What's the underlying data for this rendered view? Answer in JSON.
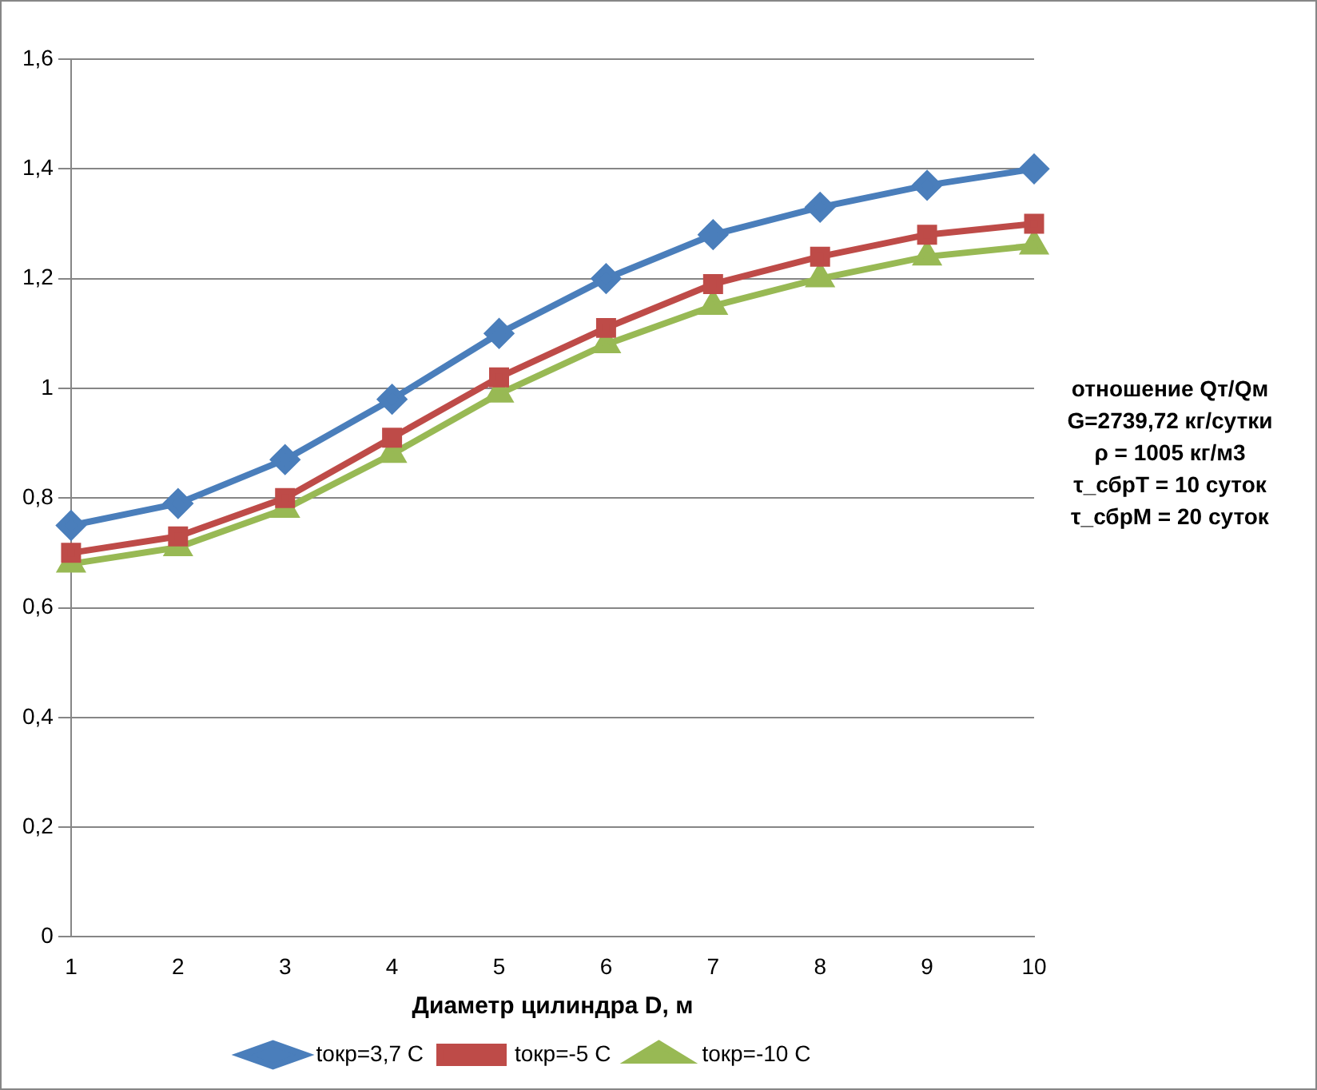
{
  "chart_data": {
    "type": "line",
    "xlabel": "Диаметр цилиндра D, м",
    "categories": [
      "1",
      "2",
      "3",
      "4",
      "5",
      "6",
      "7",
      "8",
      "9",
      "10"
    ],
    "series": [
      {
        "name": "tокр=3,7 С",
        "color": "#4a7ebb",
        "marker": "diamond",
        "values": [
          0.75,
          0.79,
          0.87,
          0.98,
          1.1,
          1.2,
          1.28,
          1.33,
          1.37,
          1.4
        ]
      },
      {
        "name": "tокр=-5 С",
        "color": "#be4b48",
        "marker": "square",
        "values": [
          0.7,
          0.73,
          0.8,
          0.91,
          1.02,
          1.11,
          1.19,
          1.24,
          1.28,
          1.3
        ]
      },
      {
        "name": "tокр=-10 С",
        "color": "#98b954",
        "marker": "triangle",
        "values": [
          0.68,
          0.71,
          0.78,
          0.88,
          0.99,
          1.08,
          1.15,
          1.2,
          1.24,
          1.26
        ]
      }
    ],
    "ylim": [
      0,
      1.6
    ],
    "yticks": [
      0,
      {
        "value": 0.2,
        "label": "0,2"
      },
      {
        "value": 0.4,
        "label": "0,4"
      },
      {
        "value": 0.6,
        "label": "0,6"
      },
      {
        "value": 0.8,
        "label": "0,8"
      },
      1,
      {
        "value": 1.2,
        "label": "1,2"
      },
      {
        "value": 1.4,
        "label": "1,4"
      },
      {
        "value": 1.6,
        "label": "1,6"
      }
    ],
    "grid": "y",
    "legend": "bottom",
    "line_style": "solid",
    "annotations": [
      "отношение Qт/Qм",
      "G=2739,72 кг/сутки",
      "ρ = 1005 кг/м3",
      "τ_сбрТ = 10 суток",
      "τ_сбрМ = 20 суток"
    ]
  }
}
